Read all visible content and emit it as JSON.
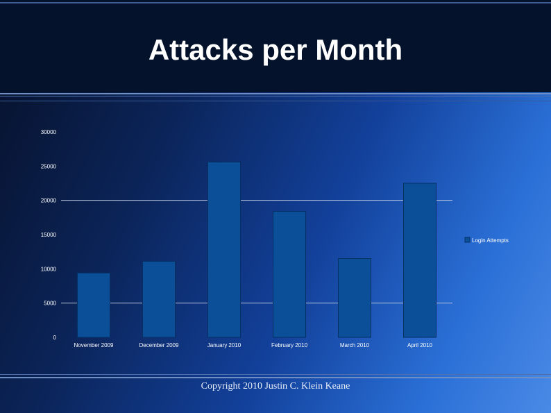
{
  "slide": {
    "title": "Attacks per Month",
    "footer": "Copyright 2010 Justin C. Klein Keane"
  },
  "chart_data": {
    "type": "bar",
    "categories": [
      "November 2009",
      "December 2009",
      "January 2010",
      "February 2010",
      "March 2010",
      "April 2010"
    ],
    "series": [
      {
        "name": "Login Attempts",
        "values": [
          9400,
          11100,
          25600,
          18400,
          11500,
          22500
        ]
      }
    ],
    "yticks": [
      "0",
      "5000",
      "10000",
      "15000",
      "20000",
      "25000",
      "30000"
    ],
    "ylim": [
      0,
      30000
    ],
    "gridlines": [
      5000,
      20000
    ],
    "legend_position": "right",
    "colors": {
      "bar": "#0a4f98",
      "bar_edge": "#062f63",
      "tick_text": "#ffffff",
      "grid": "#b8c6de"
    }
  }
}
